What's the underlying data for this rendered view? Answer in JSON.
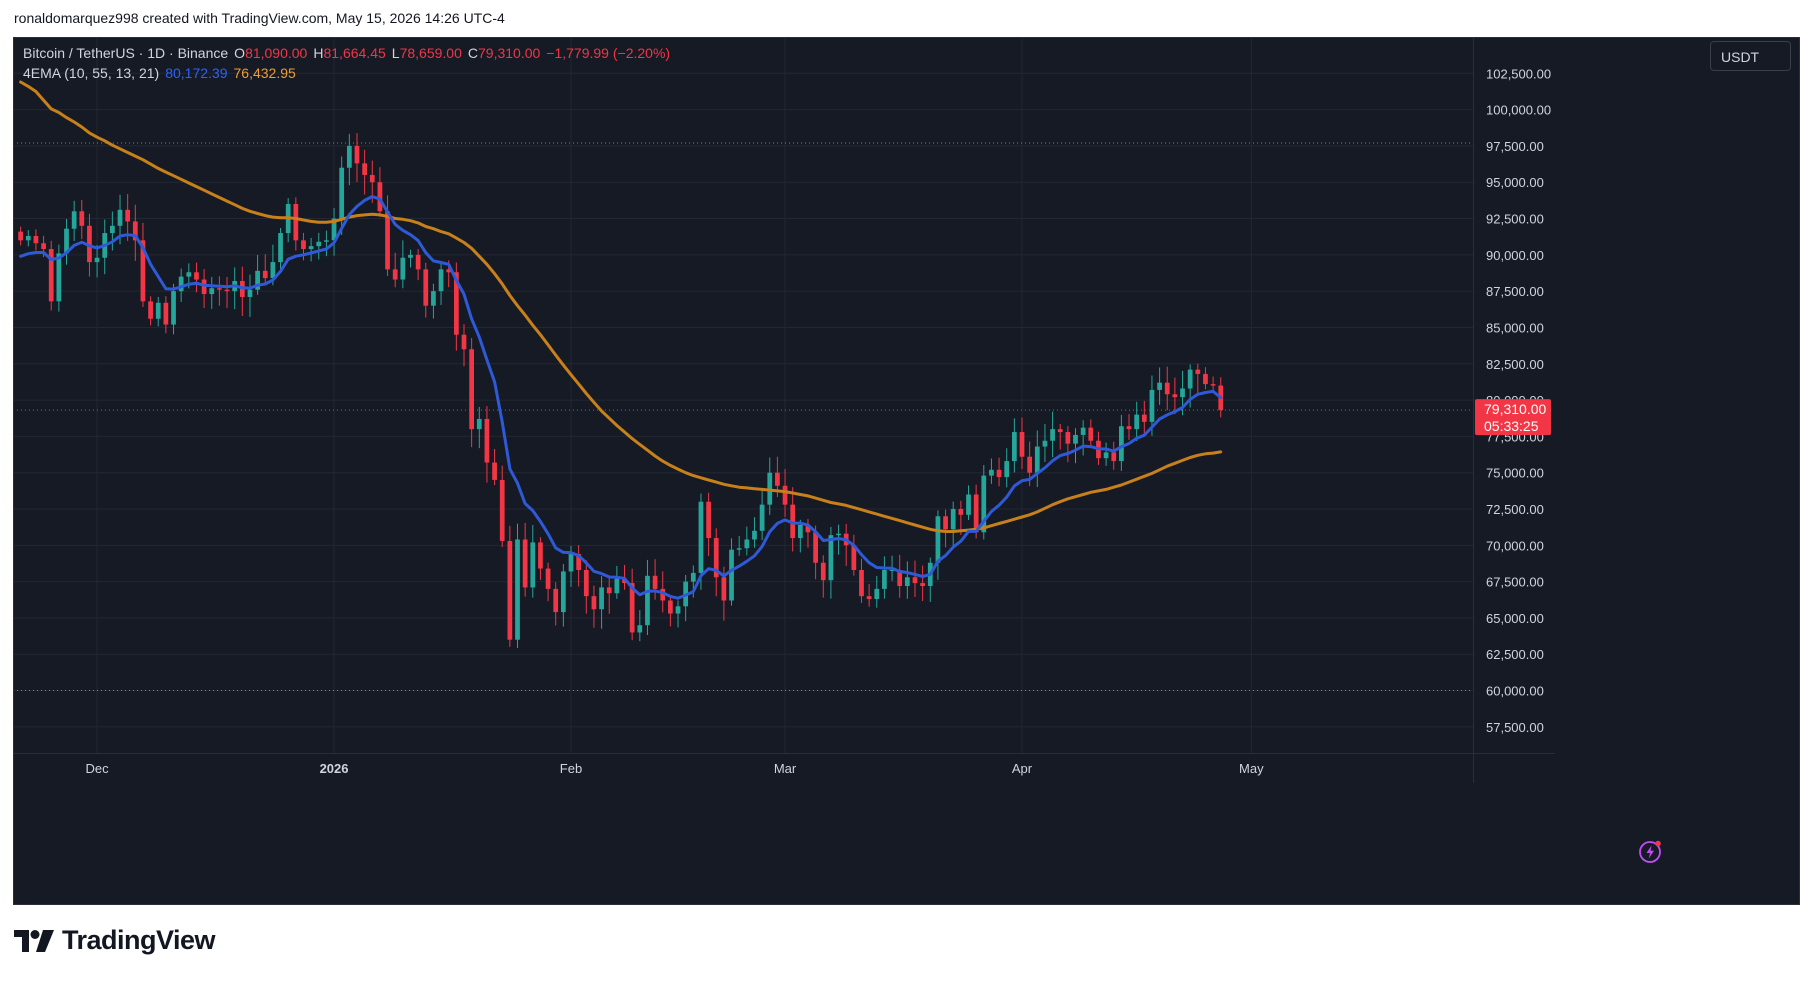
{
  "header": {
    "attribution": "ronaldomarquez998 created with TradingView.com, May 15, 2026 14:26 UTC-4"
  },
  "legend": {
    "symbol": "Bitcoin / TetherUS · 1D · Binance",
    "open_label": "O",
    "open": "81,090.00",
    "high_label": "H",
    "high": "81,664.45",
    "low_label": "L",
    "low": "78,659.00",
    "close_label": "C",
    "close": "79,310.00",
    "change": "−1,779.99 (−2.20%)",
    "indicator": "4EMA (10, 55, 13, 21)",
    "ema_fast_value": "80,172.39",
    "ema_slow_value": "76,432.95"
  },
  "currency_button": "USDT",
  "last_price_tag": {
    "price": "79,310.00",
    "countdown": "05:33:25"
  },
  "footer": {
    "brand": "TradingView"
  },
  "colors": {
    "background": "#161a25",
    "grid": "#232733",
    "up": "#26a69a",
    "down": "#f23645",
    "ema_fast": "#2e5ad8",
    "ema_slow": "#c8801a",
    "axis_text": "#d1d4dc"
  },
  "chart_data": {
    "type": "candlestick",
    "title": "Bitcoin / TetherUS · 1D · Binance",
    "x_start": "2025-11-21",
    "x_end": "2026-05-15",
    "xlim": [
      "2025-11-20",
      "2026-05-30"
    ],
    "x_ticks": [
      {
        "date": "2025-12-01",
        "label": "Dec"
      },
      {
        "date": "2026-01-01",
        "label": "2026"
      },
      {
        "date": "2026-02-01",
        "label": "Feb"
      },
      {
        "date": "2026-03-01",
        "label": "Mar"
      },
      {
        "date": "2026-04-01",
        "label": "Apr"
      },
      {
        "date": "2026-05-01",
        "label": "May"
      }
    ],
    "y_ticks": [
      {
        "value": 57500,
        "label": "57,500.00"
      },
      {
        "value": 60000,
        "label": "60,000.00"
      },
      {
        "value": 62500,
        "label": "62,500.00"
      },
      {
        "value": 65000,
        "label": "65,000.00"
      },
      {
        "value": 67500,
        "label": "67,500.00"
      },
      {
        "value": 70000,
        "label": "70,000.00"
      },
      {
        "value": 72500,
        "label": "72,500.00"
      },
      {
        "value": 75000,
        "label": "75,000.00"
      },
      {
        "value": 77500,
        "label": "77,500.00"
      },
      {
        "value": 80000,
        "label": "80,000.00"
      },
      {
        "value": 82500,
        "label": "82,500.00"
      },
      {
        "value": 85000,
        "label": "85,000.00"
      },
      {
        "value": 87500,
        "label": "87,500.00"
      },
      {
        "value": 90000,
        "label": "90,000.00"
      },
      {
        "value": 92500,
        "label": "92,500.00"
      },
      {
        "value": 95000,
        "label": "95,000.00"
      },
      {
        "value": 97500,
        "label": "97,500.00"
      },
      {
        "value": 100000,
        "label": "100,000.00"
      },
      {
        "value": 102500,
        "label": "102,500.00"
      }
    ],
    "ylim": [
      55700,
      105000
    ],
    "dotted_levels": [
      60000,
      97700
    ],
    "last_price": 79310,
    "closes": [
      91000,
      91300,
      90800,
      90400,
      86800,
      90100,
      91800,
      93000,
      92000,
      89500,
      89800,
      91500,
      92000,
      93100,
      92300,
      91000,
      86800,
      85600,
      86700,
      85200,
      87500,
      88500,
      88800,
      88300,
      87300,
      87700,
      87600,
      87500,
      88200,
      87100,
      87600,
      88900,
      88400,
      89500,
      91500,
      93500,
      91000,
      90400,
      90600,
      90900,
      91000,
      92500,
      96000,
      97500,
      96300,
      95500,
      95000,
      93000,
      89000,
      88300,
      89800,
      90000,
      89000,
      86500,
      87500,
      89000,
      88800,
      84500,
      83500,
      78000,
      78700,
      75700,
      74500,
      70300,
      63500,
      70400,
      67100,
      70200,
      68400,
      67000,
      65400,
      68200,
      69400,
      68300,
      66500,
      65600,
      67100,
      66700,
      67700,
      67400,
      64000,
      64500,
      67900,
      67000,
      66200,
      65300,
      65800,
      67500,
      68100,
      73000,
      70500,
      67800,
      66200,
      69700,
      69800,
      70400,
      71000,
      72800,
      75000,
      74100,
      72800,
      70500,
      71400,
      70900,
      68800,
      67600,
      70700,
      70800,
      70000,
      68300,
      66500,
      66300,
      67000,
      68300,
      68300,
      67200,
      67800,
      67400,
      67200,
      68800,
      72000,
      71100,
      72500,
      72100,
      73500,
      70900,
      74800,
      75200,
      74700,
      75800,
      77800,
      76100,
      75000,
      76800,
      77200,
      78000,
      77800,
      77000,
      77600,
      78100,
      77200,
      76000,
      76400,
      75800,
      78200,
      78000,
      79000,
      78500,
      80700,
      81200,
      80400,
      80200,
      80800,
      82100,
      81800,
      81100,
      81000,
      79310
    ],
    "ema_fast": [
      89900,
      90080,
      90160,
      90160,
      89680,
      89780,
      90150,
      90650,
      90870,
      90620,
      90470,
      90650,
      90900,
      91300,
      91390,
      91320,
      90500,
      89350,
      88510,
      87660,
      87640,
      87800,
      87980,
      88050,
      87900,
      87870,
      87840,
      87800,
      87870,
      87730,
      87710,
      87910,
      87990,
      88270,
      88860,
      89700,
      89910,
      90000,
      90130,
      90270,
      90400,
      90830,
      91830,
      92770,
      93340,
      93750,
      94020,
      93830,
      92950,
      92100,
      91690,
      91390,
      90990,
      90150,
      89580,
      89470,
      89350,
      88240,
      87290,
      85600,
      84340,
      82770,
      81250,
      78500,
      75260,
      74280,
      72880,
      72390,
      71640,
      70790,
      69820,
      69510,
      69500,
      69290,
      68790,
      68210,
      68050,
      67820,
      67800,
      67730,
      67060,
      66600,
      66830,
      66860,
      66740,
      66480,
      66360,
      66570,
      66810,
      67910,
      68390,
      68280,
      67890,
      68280,
      68570,
      68900,
      69280,
      69920,
      70940,
      71510,
      71750,
      71540,
      71520,
      71400,
      70930,
      70330,
      70400,
      70470,
      70380,
      70000,
      69360,
      68800,
      68470,
      68440,
      68420,
      68200,
      68130,
      68000,
      67850,
      68000,
      68900,
      69300,
      69880,
      70280,
      70960,
      70960,
      71660,
      72330,
      72760,
      73320,
      74090,
      74450,
      74540,
      74950,
      75340,
      75820,
      76180,
      76320,
      76550,
      76830,
      76800,
      76650,
      76630,
      76480,
      76790,
      77010,
      77370,
      77580,
      78140,
      78700,
      78980,
      79200,
      79490,
      80050,
      80400,
      80520,
      80600,
      80172
    ],
    "ema_slow": [
      101900,
      101600,
      101250,
      100650,
      100050,
      99800,
      99450,
      99150,
      98800,
      98400,
      98100,
      97850,
      97550,
      97300,
      97050,
      96800,
      96550,
      96250,
      95950,
      95700,
      95450,
      95200,
      94950,
      94700,
      94450,
      94200,
      93950,
      93700,
      93450,
      93200,
      93000,
      92850,
      92700,
      92600,
      92550,
      92550,
      92500,
      92400,
      92300,
      92250,
      92250,
      92300,
      92450,
      92600,
      92700,
      92750,
      92800,
      92750,
      92650,
      92500,
      92450,
      92350,
      92200,
      91950,
      91800,
      91600,
      91450,
      91150,
      90850,
      90450,
      89900,
      89350,
      88700,
      88000,
      87200,
      86500,
      85850,
      85150,
      84500,
      83800,
      83100,
      82400,
      81750,
      81100,
      80450,
      79850,
      79250,
      78750,
      78250,
      77800,
      77350,
      76950,
      76550,
      76150,
      75800,
      75500,
      75250,
      75000,
      74800,
      74650,
      74500,
      74350,
      74200,
      74100,
      74000,
      73950,
      73900,
      73850,
      73800,
      73750,
      73700,
      73600,
      73500,
      73400,
      73250,
      73100,
      72950,
      72850,
      72750,
      72600,
      72450,
      72300,
      72150,
      72000,
      71850,
      71700,
      71550,
      71400,
      71250,
      71100,
      71000,
      70950,
      70950,
      71000,
      71050,
      71100,
      71200,
      71350,
      71500,
      71650,
      71800,
      71950,
      72100,
      72300,
      72550,
      72800,
      73000,
      73200,
      73350,
      73500,
      73650,
      73750,
      73850,
      74000,
      74150,
      74350,
      74550,
      74750,
      74950,
      75200,
      75450,
      75650,
      75850,
      76050,
      76200,
      76300,
      76350,
      76432
    ]
  }
}
